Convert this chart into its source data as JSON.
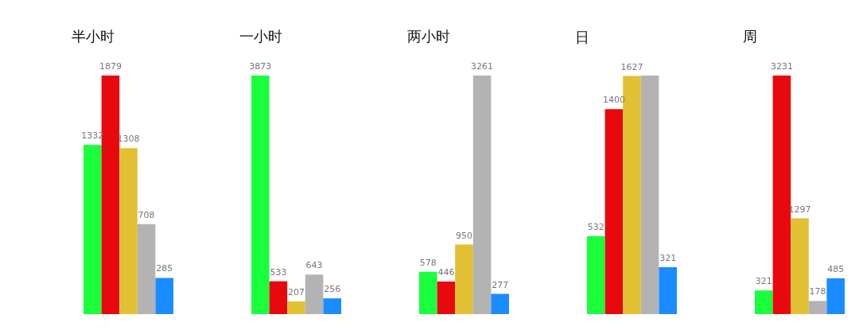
{
  "chart_data": [
    {
      "type": "bar",
      "title": "半小时",
      "categories": [
        null,
        null,
        null,
        null,
        null
      ],
      "values": [
        1332,
        1879,
        1308,
        708,
        285
      ],
      "ylim": [
        0,
        1879
      ],
      "colors": [
        "#1aff3c",
        "#e8090f",
        "#e2c034",
        "#b3b3b3",
        "#1a8cff"
      ],
      "data_labels": true
    },
    {
      "type": "bar",
      "title": "一小时",
      "categories": [
        null,
        null,
        null,
        null,
        null
      ],
      "values": [
        3873,
        533,
        207,
        643,
        256
      ],
      "ylim": [
        0,
        3873
      ],
      "colors": [
        "#1aff3c",
        "#e8090f",
        "#e2c034",
        "#b3b3b3",
        "#1a8cff"
      ],
      "data_labels": true
    },
    {
      "type": "bar",
      "title": "两小时",
      "categories": [
        null,
        null,
        null,
        null,
        null
      ],
      "values": [
        578,
        446,
        950,
        3261,
        277
      ],
      "ylim": [
        0,
        3261
      ],
      "colors": [
        "#1aff3c",
        "#e8090f",
        "#e2c034",
        "#b3b3b3",
        "#1a8cff"
      ],
      "data_labels": true
    },
    {
      "type": "bar",
      "title": "日",
      "categories": [
        null,
        null,
        null,
        null,
        null
      ],
      "values": [
        532,
        1400,
        1627,
        1630,
        321
      ],
      "ylim": [
        0,
        1630
      ],
      "value_labels": [
        "532",
        "1400",
        "1627",
        null,
        "321"
      ],
      "colors": [
        "#1aff3c",
        "#e8090f",
        "#e2c034",
        "#b3b3b3",
        "#1a8cff"
      ]
    },
    {
      "type": "bar",
      "title": "周",
      "categories": [
        null,
        null,
        null,
        null,
        null
      ],
      "values": [
        321,
        3231,
        1297,
        178,
        485
      ],
      "ylim": [
        0,
        3231
      ],
      "colors": [
        "#1aff3c",
        "#e8090f",
        "#e2c034",
        "#b3b3b3",
        "#1a8cff"
      ],
      "data_labels": true
    }
  ]
}
